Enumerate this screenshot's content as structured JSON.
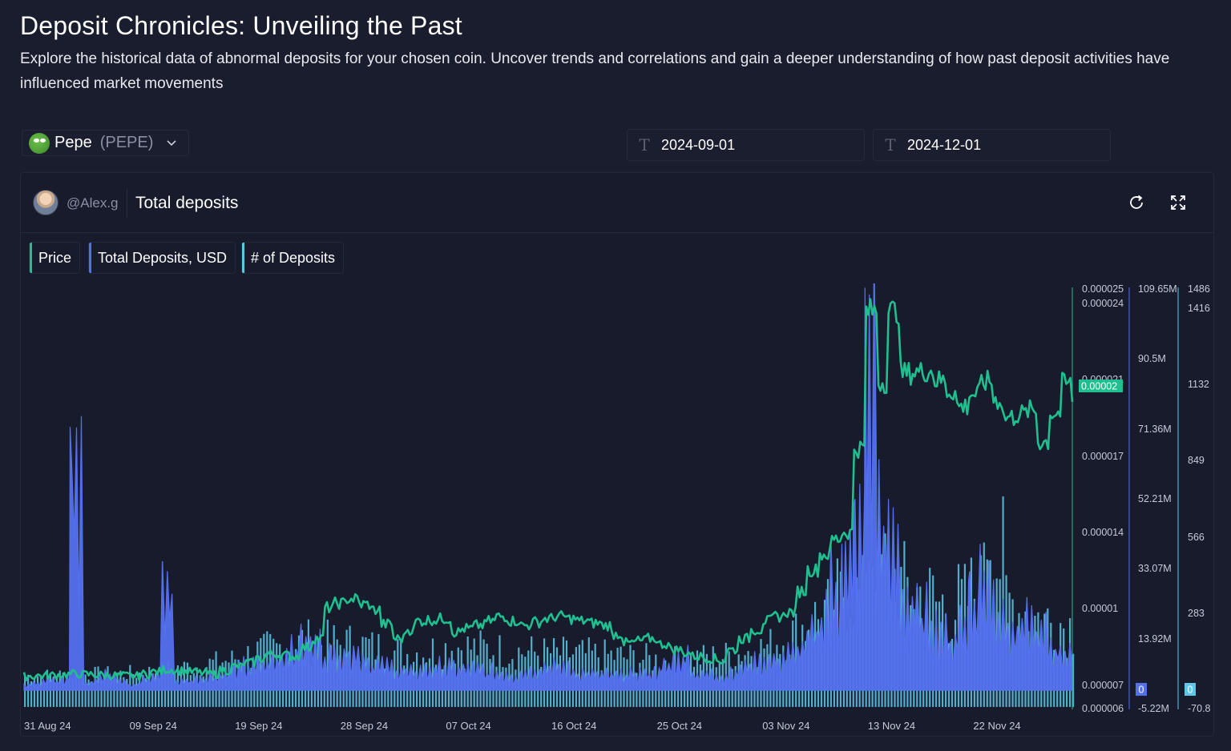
{
  "page": {
    "title": "Deposit Chronicles: Unveiling the Past",
    "description": "Explore the historical data of abnormal deposits for your chosen coin. Uncover trends and correlations and gain a deeper understanding of how past deposit activities have influenced market movements"
  },
  "coin": {
    "name": "Pepe",
    "ticker": "(PEPE)",
    "icon": "pepe-frog-logo"
  },
  "dates": {
    "start": "2024-09-01",
    "end": "2024-12-01",
    "icon": "text-T-icon"
  },
  "panel": {
    "author": "@Alex.g",
    "title": "Total deposits",
    "icons": [
      "refresh-icon",
      "fullscreen-icon"
    ],
    "legend": [
      {
        "label": "Price",
        "color": "#1fbf8f"
      },
      {
        "label": "Total Deposits, USD",
        "color": "#5470ee"
      },
      {
        "label": "# of Deposits",
        "color": "#5ec7e8"
      }
    ]
  },
  "colors": {
    "background": "#1a1d2e",
    "price": "#1fbf8f",
    "deposits_usd": "#5470ee",
    "deposit_count": "#5ec7e8"
  },
  "chart_data": {
    "type": "line",
    "title": "",
    "xlabel": "",
    "x_ticks": [
      "31 Aug 24",
      "09 Sep 24",
      "19 Sep 24",
      "28 Sep 24",
      "07 Oct 24",
      "16 Oct 24",
      "25 Oct 24",
      "03 Nov 24",
      "13 Nov 24",
      "22 Nov 24"
    ],
    "price_axis": {
      "ticks": [
        "0.000025",
        "0.000024",
        "0.000021",
        "0.000017",
        "0.000014",
        "0.00001",
        "0.000007",
        "0.000006"
      ],
      "ylim": [
        6e-06,
        2.5e-05
      ],
      "current_value": "0.00002"
    },
    "usd_axis": {
      "ticks": [
        "109.65M",
        "90.5M",
        "71.36M",
        "52.21M",
        "33.07M",
        "13.92M",
        "0",
        "-5.22M"
      ],
      "ylim": [
        -5.22,
        109.65
      ],
      "unit": "M USD"
    },
    "count_axis": {
      "ticks": [
        "1486",
        "1416",
        "1132",
        "849",
        "566",
        "283",
        "0",
        "-70.8"
      ],
      "ylim": [
        -70.8,
        1486
      ]
    },
    "series": [
      {
        "name": "Price",
        "axis": "price",
        "dates": [
          "2024-08-31",
          "2024-09-04",
          "2024-09-09",
          "2024-09-12",
          "2024-09-16",
          "2024-09-19",
          "2024-09-21",
          "2024-09-23",
          "2024-09-25",
          "2024-09-26",
          "2024-09-28",
          "2024-09-30",
          "2024-10-02",
          "2024-10-04",
          "2024-10-06",
          "2024-10-07",
          "2024-10-09",
          "2024-10-11",
          "2024-10-13",
          "2024-10-15",
          "2024-10-16",
          "2024-10-18",
          "2024-10-20",
          "2024-10-22",
          "2024-10-24",
          "2024-10-26",
          "2024-10-28",
          "2024-10-30",
          "2024-11-01",
          "2024-11-03",
          "2024-11-05",
          "2024-11-07",
          "2024-11-09",
          "2024-11-10",
          "2024-11-11",
          "2024-11-12",
          "2024-11-13",
          "2024-11-14",
          "2024-11-15",
          "2024-11-17",
          "2024-11-19",
          "2024-11-20",
          "2024-11-22",
          "2024-11-24",
          "2024-11-26",
          "2024-11-27",
          "2024-11-29",
          "2024-11-30"
        ],
        "values": [
          7.5e-06,
          7.6e-06,
          7.5e-06,
          7.8e-06,
          7.6e-06,
          8.1e-06,
          8.5e-06,
          8.4e-06,
          9.2e-06,
          1.06e-05,
          1.1e-05,
          1.05e-05,
          9.2e-06,
          1e-05,
          1.01e-05,
          9.5e-06,
          9.8e-06,
          1.02e-05,
          9.8e-06,
          1.01e-05,
          1.02e-05,
          1e-05,
          9.8e-06,
          9e-06,
          9.2e-06,
          8.7e-06,
          8.4e-06,
          8.2e-06,
          9.2e-06,
          1e-05,
          1.04e-05,
          1.23e-05,
          1.37e-05,
          1.4e-05,
          1.78e-05,
          2.4e-05,
          2.08e-05,
          2.4e-05,
          2.12e-05,
          2.13e-05,
          2.04e-05,
          1.97e-05,
          2.08e-05,
          1.92e-05,
          1.95e-05,
          1.81e-05,
          2.07e-05,
          2.01e-05
        ]
      },
      {
        "name": "Total Deposits, USD",
        "axis": "usd",
        "unit": "M",
        "dates": [
          "2024-08-31",
          "2024-09-03",
          "2024-09-04",
          "2024-09-05",
          "2024-09-07",
          "2024-09-09",
          "2024-09-11",
          "2024-09-12",
          "2024-09-13",
          "2024-09-16",
          "2024-09-19",
          "2024-09-21",
          "2024-09-23",
          "2024-09-24",
          "2024-09-26",
          "2024-09-28",
          "2024-09-30",
          "2024-10-03",
          "2024-10-06",
          "2024-10-09",
          "2024-10-12",
          "2024-10-15",
          "2024-10-18",
          "2024-10-21",
          "2024-10-24",
          "2024-10-27",
          "2024-10-28",
          "2024-10-30",
          "2024-11-01",
          "2024-11-03",
          "2024-11-05",
          "2024-11-07",
          "2024-11-08",
          "2024-11-09",
          "2024-11-10",
          "2024-11-11",
          "2024-11-12",
          "2024-11-13",
          "2024-11-14",
          "2024-11-15",
          "2024-11-17",
          "2024-11-18",
          "2024-11-19",
          "2024-11-21",
          "2024-11-22",
          "2024-11-24",
          "2024-11-26",
          "2024-11-28",
          "2024-11-30"
        ],
        "values": [
          2,
          4,
          72,
          3,
          6,
          2,
          5,
          35,
          3,
          5,
          8,
          10,
          16,
          18,
          12,
          15,
          9,
          6,
          8,
          7,
          5,
          9,
          6,
          5,
          6,
          12,
          6,
          5,
          8,
          10,
          12,
          20,
          28,
          35,
          40,
          50,
          110,
          60,
          45,
          30,
          25,
          20,
          18,
          30,
          40,
          20,
          22,
          15,
          12
        ]
      },
      {
        "name": "# of Deposits",
        "axis": "count",
        "dates": [
          "2024-08-31",
          "2024-09-09",
          "2024-09-16",
          "2024-09-21",
          "2024-09-24",
          "2024-09-28",
          "2024-10-03",
          "2024-10-07",
          "2024-10-12",
          "2024-10-16",
          "2024-10-21",
          "2024-10-25",
          "2024-10-30",
          "2024-11-03",
          "2024-11-06",
          "2024-11-08",
          "2024-11-10",
          "2024-11-11",
          "2024-11-12",
          "2024-11-13",
          "2024-11-15",
          "2024-11-17",
          "2024-11-19",
          "2024-11-21",
          "2024-11-22",
          "2024-11-24",
          "2024-11-26",
          "2024-11-28",
          "2024-11-30"
        ],
        "values": [
          60,
          70,
          110,
          170,
          200,
          190,
          150,
          180,
          160,
          150,
          140,
          120,
          140,
          180,
          260,
          330,
          420,
          380,
          620,
          500,
          420,
          380,
          330,
          400,
          720,
          360,
          300,
          280,
          250
        ]
      }
    ]
  }
}
